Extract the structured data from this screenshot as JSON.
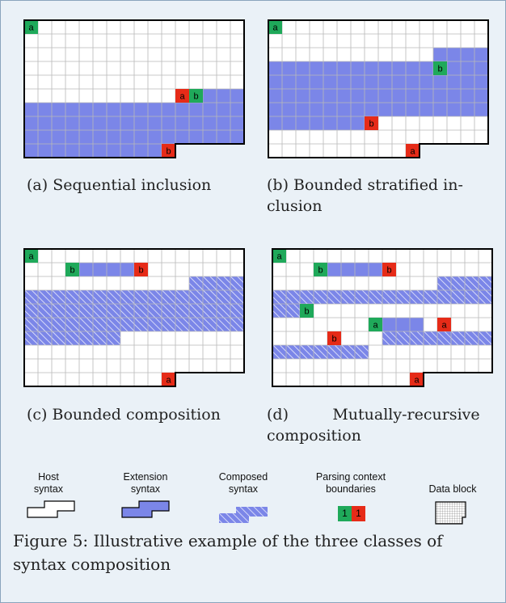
{
  "panels": [
    {
      "id": "a",
      "caption_line1": "(a) Sequential inclusion",
      "caption_line2": ""
    },
    {
      "id": "b",
      "caption_line1": "(b) Bounded stratified in-",
      "caption_line2": "clusion"
    },
    {
      "id": "c",
      "caption_line1": "(c) Bounded composition",
      "caption_line2": ""
    },
    {
      "id": "d",
      "caption_line1": "(d)         Mutually-recursive",
      "caption_line2": "composition"
    }
  ],
  "marker_letters": {
    "a": "a",
    "b": "b"
  },
  "legend": {
    "host": "Host\nsyntax",
    "extension": "Extension\nsyntax",
    "composed": "Composed\nsyntax",
    "boundaries": "Parsing context\nboundaries",
    "boundary_left": "1",
    "boundary_right": "1",
    "data_block": "Data block"
  },
  "figure_caption": "Figure 5: Illustrative example of the three classes of syntax composition",
  "colors": {
    "background": "#eaf1f7",
    "grid": "#b8b8b8",
    "extension": "#7b86e8",
    "green": "#1fa95a",
    "red": "#e62b18"
  }
}
